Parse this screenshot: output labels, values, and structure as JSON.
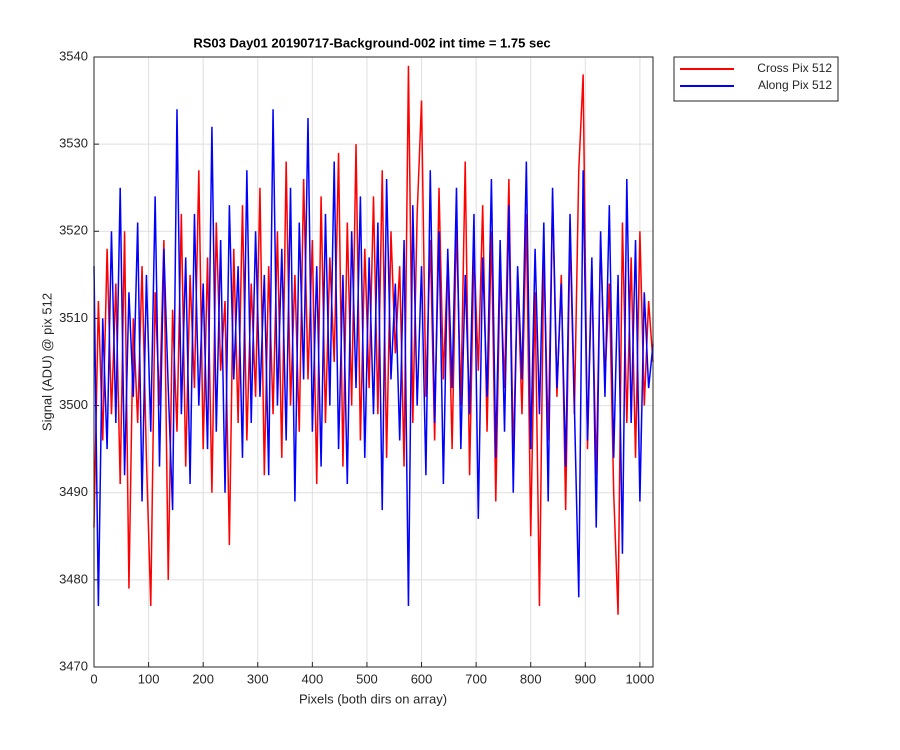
{
  "chart_data": {
    "type": "line",
    "title": "RS03 Day01 20190717-Background-002 int time = 1.75 sec",
    "x_label": "Pixels (both dirs on array)",
    "y_label": "Signal (ADU) @ pix 512",
    "xlim": [
      0,
      1024
    ],
    "ylim": [
      3470,
      3540
    ],
    "xticks": [
      0,
      100,
      200,
      300,
      400,
      500,
      600,
      700,
      800,
      900,
      1000
    ],
    "yticks": [
      3470,
      3480,
      3490,
      3500,
      3510,
      3520,
      3530,
      3540
    ],
    "grid": true,
    "legend": "outside-right",
    "x": [
      0,
      8,
      16,
      24,
      32,
      40,
      48,
      56,
      64,
      72,
      80,
      88,
      96,
      104,
      112,
      120,
      128,
      136,
      144,
      152,
      160,
      168,
      176,
      184,
      192,
      200,
      208,
      216,
      224,
      232,
      240,
      248,
      256,
      264,
      272,
      280,
      288,
      296,
      304,
      312,
      320,
      328,
      336,
      344,
      352,
      360,
      368,
      376,
      384,
      392,
      400,
      408,
      416,
      424,
      432,
      440,
      448,
      456,
      464,
      472,
      480,
      488,
      496,
      504,
      512,
      520,
      528,
      536,
      544,
      552,
      560,
      568,
      576,
      584,
      592,
      600,
      608,
      616,
      624,
      632,
      640,
      648,
      656,
      664,
      672,
      680,
      688,
      696,
      704,
      712,
      720,
      728,
      736,
      744,
      752,
      760,
      768,
      776,
      784,
      792,
      800,
      808,
      816,
      824,
      832,
      840,
      848,
      856,
      864,
      872,
      880,
      888,
      896,
      904,
      912,
      920,
      928,
      936,
      944,
      952,
      960,
      968,
      976,
      984,
      992,
      1000,
      1008,
      1016,
      1024
    ],
    "series": [
      {
        "name": "Cross Pix 512",
        "color": "#ff0000",
        "values": [
          3486,
          3512,
          3496,
          3518,
          3499,
          3514,
          3491,
          3520,
          3479,
          3510,
          3498,
          3516,
          3494,
          3477,
          3513,
          3500,
          3519,
          3480,
          3511,
          3497,
          3522,
          3493,
          3515,
          3502,
          3527,
          3495,
          3517,
          3490,
          3521,
          3504,
          3512,
          3484,
          3518,
          3498,
          3523,
          3496,
          3514,
          3501,
          3525,
          3492,
          3516,
          3499,
          3520,
          3494,
          3528,
          3500,
          3515,
          3497,
          3526,
          3503,
          3519,
          3491,
          3524,
          3498,
          3517,
          3505,
          3529,
          3493,
          3521,
          3500,
          3530,
          3496,
          3518,
          3502,
          3524,
          3499,
          3527,
          3494,
          3520,
          3506,
          3516,
          3493,
          3539,
          3498,
          3522,
          3535,
          3501,
          3519,
          3496,
          3525,
          3503,
          3517,
          3495,
          3521,
          3500,
          3528,
          3492,
          3518,
          3504,
          3523,
          3497,
          3520,
          3489,
          3516,
          3502,
          3526,
          3494,
          3515,
          3499,
          3522,
          3485,
          3513,
          3477,
          3518,
          3496,
          3524,
          3501,
          3515,
          3488,
          3520,
          3499,
          3527,
          3538,
          3495,
          3516,
          3492,
          3519,
          3503,
          3514,
          3490,
          3476,
          3521,
          3498,
          3517,
          3494,
          3520,
          3500,
          3512,
          3505
        ]
      },
      {
        "name": "Along Pix 512",
        "color": "#0000ff",
        "values": [
          3516,
          3477,
          3510,
          3495,
          3520,
          3498,
          3525,
          3492,
          3513,
          3501,
          3521,
          3489,
          3515,
          3497,
          3524,
          3493,
          3518,
          3502,
          3488,
          3534,
          3499,
          3517,
          3491,
          3522,
          3500,
          3514,
          3495,
          3532,
          3497,
          3519,
          3490,
          3523,
          3503,
          3516,
          3494,
          3527,
          3498,
          3520,
          3501,
          3515,
          3492,
          3534,
          3500,
          3518,
          3496,
          3525,
          3489,
          3521,
          3503,
          3533,
          3497,
          3516,
          3493,
          3522,
          3500,
          3528,
          3495,
          3515,
          3491,
          3520,
          3502,
          3524,
          3494,
          3517,
          3499,
          3521,
          3488,
          3526,
          3503,
          3514,
          3496,
          3519,
          3477,
          3523,
          3500,
          3516,
          3492,
          3527,
          3498,
          3520,
          3491,
          3518,
          3502,
          3525,
          3495,
          3515,
          3499,
          3522,
          3487,
          3517,
          3501,
          3526,
          3494,
          3519,
          3497,
          3523,
          3490,
          3516,
          3503,
          3528,
          3495,
          3518,
          3499,
          3521,
          3489,
          3525,
          3502,
          3514,
          3493,
          3522,
          3500,
          3478,
          3527,
          3496,
          3517,
          3486,
          3520,
          3501,
          3523,
          3494,
          3515,
          3483,
          3526,
          3498,
          3519,
          3489,
          3513,
          3502,
          3507
        ]
      }
    ]
  }
}
